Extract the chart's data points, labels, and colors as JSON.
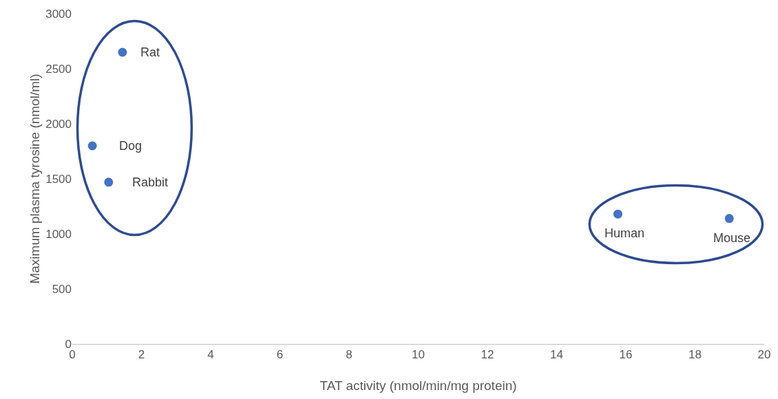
{
  "chart_data": {
    "type": "scatter",
    "xlabel": "TAT activity (nmol/min/mg protein)",
    "ylabel": "Maximum plasma tyrosine (nmol/ml)",
    "x": [
      1.45,
      0.58,
      1.05,
      15.77,
      18.99
    ],
    "values": [
      2650,
      1800,
      1470,
      1180,
      1140
    ],
    "color": "#4472c4",
    "marker": "circle",
    "xlim": [
      0,
      20
    ],
    "xticks": [
      0,
      2,
      4,
      6,
      8,
      10,
      12,
      14,
      16,
      18,
      20
    ],
    "ylim": [
      0,
      3000
    ],
    "yticks": [
      0,
      500,
      1000,
      1500,
      2000,
      2500,
      3000
    ],
    "annotations": [
      {
        "text": "Rat",
        "x": 1.45,
        "y": 2650
      },
      {
        "text": "Dog",
        "x": 0.58,
        "y": 1800
      },
      {
        "text": "Rabbit",
        "x": 1.05,
        "y": 1470
      },
      {
        "text": "Human",
        "x": 15.77,
        "y": 1180
      },
      {
        "text": "Mouse",
        "x": 18.99,
        "y": 1140
      }
    ]
  }
}
